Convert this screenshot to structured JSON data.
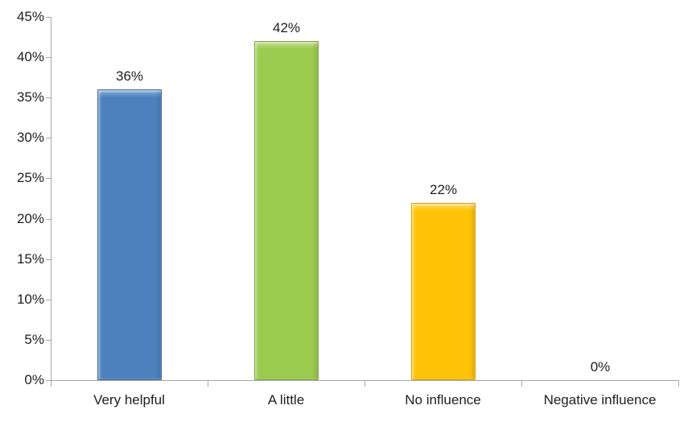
{
  "chart_data": {
    "type": "bar",
    "title": "",
    "xlabel": "",
    "ylabel": "",
    "categories": [
      "Very helpful",
      "A little",
      "No influence",
      "Negative influence"
    ],
    "values": [
      36,
      42,
      22,
      0
    ],
    "data_labels": [
      "36%",
      "42%",
      "22%",
      "0%"
    ],
    "ylim": [
      0,
      45
    ],
    "ytick_step": 5,
    "ytick_labels": [
      "0%",
      "5%",
      "10%",
      "15%",
      "20%",
      "25%",
      "30%",
      "35%",
      "40%",
      "45%"
    ],
    "grid": false,
    "legend": "none",
    "bar_colors": [
      {
        "name": "blue",
        "main": "#4c81be",
        "light": "#85aedb",
        "dark": "#3b679c"
      },
      {
        "name": "green",
        "main": "#9bcb4f",
        "light": "#c3e18c",
        "dark": "#7ba53c"
      },
      {
        "name": "gold",
        "main": "#ffc408",
        "light": "#ffdd66",
        "dark": "#dfa000"
      },
      {
        "name": "none",
        "main": "transparent",
        "light": "transparent",
        "dark": "transparent"
      }
    ],
    "axis_color": "#a6a6a6",
    "text_color": "#1e1e1e"
  }
}
